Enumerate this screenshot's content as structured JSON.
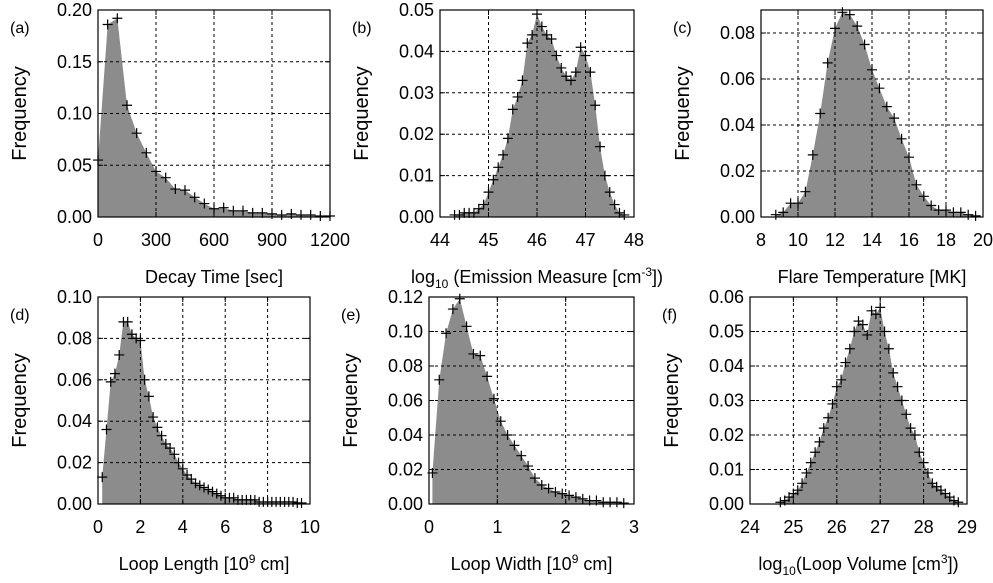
{
  "colors": {
    "fill": "#8c8c8c",
    "marker": "#000000",
    "grid": "#000000"
  },
  "chart_data": [
    {
      "type": "area",
      "panel_label": "(a)",
      "xlabel": "Decay Time [sec]",
      "ylabel": "Frequency",
      "xlim": [
        0,
        1200
      ],
      "ylim": [
        0,
        0.2
      ],
      "xticks": [
        0,
        300,
        600,
        900,
        1200
      ],
      "yticks": [
        0.0,
        0.05,
        0.1,
        0.15,
        0.2
      ],
      "ytick_labels": [
        "0.00",
        "0.05",
        "0.10",
        "0.15",
        "0.20"
      ],
      "grid": true,
      "x": [
        0,
        50,
        100,
        150,
        200,
        250,
        300,
        350,
        400,
        450,
        500,
        550,
        600,
        650,
        700,
        750,
        800,
        850,
        900,
        950,
        1000,
        1050,
        1100,
        1150,
        1200
      ],
      "y": [
        0.055,
        0.186,
        0.192,
        0.108,
        0.081,
        0.062,
        0.044,
        0.038,
        0.027,
        0.026,
        0.019,
        0.013,
        0.008,
        0.009,
        0.006,
        0.006,
        0.004,
        0.004,
        0.003,
        0.002,
        0.003,
        0.002,
        0.002,
        0.001,
        0.001
      ]
    },
    {
      "type": "area",
      "panel_label": "(b)",
      "xlabel_prefix": "log",
      "xlabel_sub": "10",
      "xlabel_main": " (Emission Measure [cm",
      "xlabel_sup": "-3",
      "xlabel_suffix": "])",
      "ylabel": "Frequency",
      "xlim": [
        44,
        48
      ],
      "ylim": [
        0,
        0.05
      ],
      "xticks": [
        44,
        45,
        46,
        47,
        48
      ],
      "yticks": [
        0.0,
        0.01,
        0.02,
        0.03,
        0.04,
        0.05
      ],
      "ytick_labels": [
        "0.00",
        "0.01",
        "0.02",
        "0.03",
        "0.04",
        "0.05"
      ],
      "grid": true,
      "x": [
        44.3,
        44.4,
        44.5,
        44.6,
        44.7,
        44.8,
        44.9,
        45.0,
        45.1,
        45.2,
        45.3,
        45.4,
        45.5,
        45.6,
        45.7,
        45.8,
        45.9,
        46.0,
        46.1,
        46.2,
        46.3,
        46.4,
        46.5,
        46.6,
        46.7,
        46.8,
        46.9,
        47.0,
        47.1,
        47.2,
        47.3,
        47.4,
        47.5,
        47.6,
        47.7,
        47.8
      ],
      "y": [
        0.0005,
        0.0005,
        0.001,
        0.001,
        0.001,
        0.002,
        0.003,
        0.006,
        0.009,
        0.012,
        0.015,
        0.019,
        0.026,
        0.029,
        0.033,
        0.042,
        0.044,
        0.049,
        0.046,
        0.044,
        0.043,
        0.039,
        0.036,
        0.034,
        0.033,
        0.035,
        0.041,
        0.039,
        0.035,
        0.027,
        0.017,
        0.01,
        0.006,
        0.003,
        0.001,
        0.0005
      ]
    },
    {
      "type": "area",
      "panel_label": "(c)",
      "xlabel": "Flare Temperature [MK]",
      "ylabel": "Frequency",
      "xlim": [
        8,
        20
      ],
      "ylim": [
        0,
        0.09
      ],
      "xticks": [
        8,
        10,
        12,
        14,
        16,
        18,
        20
      ],
      "yticks": [
        0.0,
        0.02,
        0.04,
        0.06,
        0.08
      ],
      "ytick_labels": [
        "0.00",
        "0.02",
        "0.04",
        "0.06",
        "0.08"
      ],
      "grid": true,
      "x": [
        8.8,
        9.2,
        9.6,
        10.0,
        10.4,
        10.8,
        11.2,
        11.6,
        12.0,
        12.4,
        12.8,
        13.2,
        13.6,
        14.0,
        14.4,
        14.8,
        15.2,
        15.6,
        16.0,
        16.4,
        16.8,
        17.2,
        17.6,
        18.0,
        18.4,
        18.8,
        19.2,
        19.6
      ],
      "y": [
        0.001,
        0.002,
        0.006,
        0.006,
        0.011,
        0.027,
        0.045,
        0.067,
        0.082,
        0.089,
        0.088,
        0.083,
        0.075,
        0.064,
        0.056,
        0.048,
        0.043,
        0.034,
        0.026,
        0.014,
        0.009,
        0.005,
        0.003,
        0.003,
        0.002,
        0.002,
        0.001,
        0.0005
      ]
    },
    {
      "type": "area",
      "panel_label": "(d)",
      "xlabel_main": "Loop Length [10",
      "xlabel_sup": "9",
      "xlabel_suffix": " cm]",
      "ylabel": "Frequency",
      "xlim": [
        0,
        10
      ],
      "ylim": [
        0,
        0.1
      ],
      "xticks": [
        0,
        2,
        4,
        6,
        8,
        10
      ],
      "yticks": [
        0.0,
        0.02,
        0.04,
        0.06,
        0.08,
        0.1
      ],
      "ytick_labels": [
        "0.00",
        "0.02",
        "0.04",
        "0.06",
        "0.08",
        "0.10"
      ],
      "grid": true,
      "x": [
        0.2,
        0.4,
        0.6,
        0.8,
        1.0,
        1.2,
        1.4,
        1.6,
        1.8,
        2.0,
        2.2,
        2.4,
        2.6,
        2.8,
        3.0,
        3.2,
        3.4,
        3.6,
        3.8,
        4.0,
        4.2,
        4.4,
        4.6,
        4.8,
        5.0,
        5.2,
        5.4,
        5.6,
        5.8,
        6.0,
        6.2,
        6.4,
        6.6,
        6.8,
        7.0,
        7.2,
        7.4,
        7.6,
        7.8,
        8.0,
        8.2,
        8.4,
        8.6,
        8.8,
        9.0,
        9.2,
        9.4,
        9.6
      ],
      "y": [
        0.013,
        0.036,
        0.059,
        0.063,
        0.072,
        0.088,
        0.088,
        0.082,
        0.08,
        0.079,
        0.06,
        0.052,
        0.042,
        0.037,
        0.033,
        0.029,
        0.027,
        0.024,
        0.02,
        0.017,
        0.014,
        0.012,
        0.01,
        0.009,
        0.008,
        0.007,
        0.006,
        0.005,
        0.004,
        0.003,
        0.003,
        0.003,
        0.002,
        0.002,
        0.002,
        0.002,
        0.002,
        0.001,
        0.001,
        0.001,
        0.001,
        0.001,
        0.001,
        0.001,
        0.001,
        0.001,
        0.0005,
        0.0005
      ]
    },
    {
      "type": "area",
      "panel_label": "(e)",
      "xlabel_main": "Loop Width [10",
      "xlabel_sup": "9",
      "xlabel_suffix": " cm]",
      "ylabel": "Frequency",
      "xlim": [
        0,
        3
      ],
      "ylim": [
        0,
        0.12
      ],
      "xticks": [
        0,
        1,
        2,
        3
      ],
      "yticks": [
        0.0,
        0.02,
        0.04,
        0.06,
        0.08,
        0.1,
        0.12
      ],
      "ytick_labels": [
        "0.00",
        "0.02",
        "0.04",
        "0.06",
        "0.08",
        "0.10",
        "0.12"
      ],
      "grid": true,
      "x": [
        0.05,
        0.15,
        0.25,
        0.35,
        0.45,
        0.55,
        0.65,
        0.75,
        0.85,
        0.95,
        1.05,
        1.15,
        1.25,
        1.35,
        1.45,
        1.55,
        1.65,
        1.75,
        1.85,
        1.95,
        2.05,
        2.15,
        2.25,
        2.35,
        2.45,
        2.55,
        2.65,
        2.75,
        2.85
      ],
      "y": [
        0.018,
        0.072,
        0.099,
        0.113,
        0.119,
        0.103,
        0.087,
        0.086,
        0.074,
        0.061,
        0.048,
        0.04,
        0.034,
        0.028,
        0.022,
        0.015,
        0.011,
        0.009,
        0.007,
        0.006,
        0.005,
        0.004,
        0.003,
        0.002,
        0.002,
        0.001,
        0.001,
        0.001,
        0.0005
      ]
    },
    {
      "type": "area",
      "panel_label": "(f)",
      "xlabel_prefix": "log",
      "xlabel_sub": "10",
      "xlabel_main": "(Loop Volume [cm",
      "xlabel_sup": "3",
      "xlabel_suffix": "])",
      "ylabel": "Frequency",
      "xlim": [
        24,
        29
      ],
      "ylim": [
        0,
        0.06
      ],
      "xticks": [
        24,
        25,
        26,
        27,
        28,
        29
      ],
      "yticks": [
        0.0,
        0.01,
        0.02,
        0.03,
        0.04,
        0.05,
        0.06
      ],
      "ytick_labels": [
        "0.00",
        "0.01",
        "0.02",
        "0.03",
        "0.04",
        "0.05",
        "0.06"
      ],
      "grid": true,
      "x": [
        24.7,
        24.8,
        24.9,
        25.0,
        25.1,
        25.2,
        25.3,
        25.4,
        25.5,
        25.6,
        25.7,
        25.8,
        25.9,
        26.0,
        26.1,
        26.2,
        26.3,
        26.4,
        26.5,
        26.6,
        26.7,
        26.8,
        26.9,
        27.0,
        27.1,
        27.2,
        27.3,
        27.4,
        27.5,
        27.6,
        27.7,
        27.8,
        27.9,
        28.0,
        28.1,
        28.2,
        28.3,
        28.4,
        28.5,
        28.6,
        28.7,
        28.8
      ],
      "y": [
        0.0005,
        0.001,
        0.002,
        0.003,
        0.004,
        0.006,
        0.009,
        0.012,
        0.015,
        0.018,
        0.022,
        0.025,
        0.029,
        0.034,
        0.036,
        0.041,
        0.045,
        0.05,
        0.053,
        0.052,
        0.049,
        0.056,
        0.055,
        0.057,
        0.05,
        0.045,
        0.038,
        0.034,
        0.03,
        0.026,
        0.022,
        0.02,
        0.015,
        0.012,
        0.009,
        0.006,
        0.005,
        0.004,
        0.003,
        0.002,
        0.001,
        0.0005
      ]
    }
  ]
}
